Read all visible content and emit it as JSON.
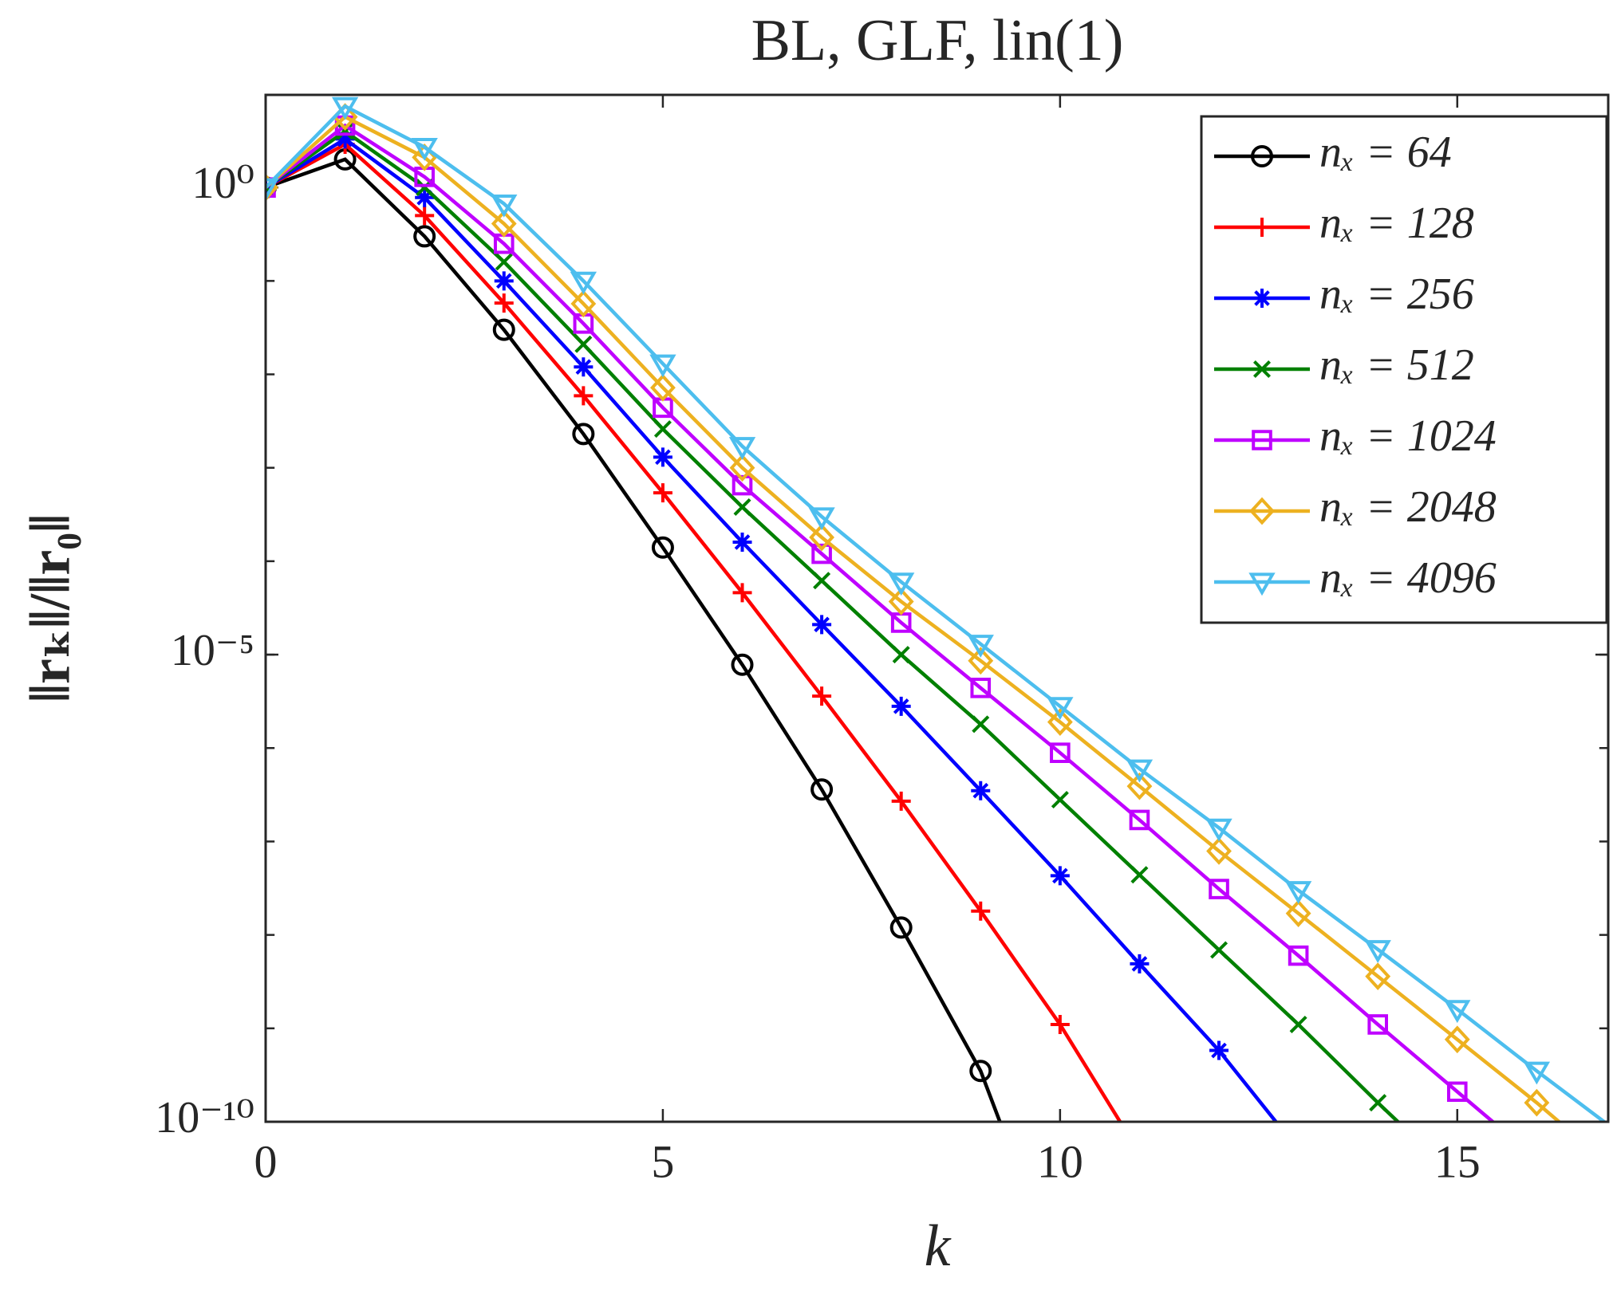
{
  "chart_data": {
    "type": "line",
    "title": "BL, GLF, lin(1)",
    "x_label": "k",
    "y_label": "‖rₖ‖/‖r₀‖",
    "x": [
      0,
      1,
      2,
      3,
      4,
      5,
      6,
      7,
      8,
      9,
      10,
      11,
      12,
      13,
      14,
      15,
      16,
      17
    ],
    "xlim": [
      0,
      16.9
    ],
    "xticks": [
      0,
      5,
      10,
      15
    ],
    "ylim": [
      1e-10,
      9.8
    ],
    "y_scale": "log",
    "yticks": [
      {
        "value": 1e-10,
        "label": "10⁻¹⁰"
      },
      {
        "value": 1e-05,
        "label": "10⁻⁵"
      },
      {
        "value": 1,
        "label": "10⁰"
      }
    ],
    "legend_position": "upper right",
    "series": [
      {
        "name": "nₓ = 64",
        "color": "#000000",
        "marker": "circle",
        "values": [
          1,
          2,
          0.3,
          0.03,
          0.0023,
          0.00014,
          7.8e-06,
          3.6e-07,
          1.2e-08,
          3.5e-10,
          2e-12,
          null,
          null,
          null,
          null,
          null,
          null,
          null
        ]
      },
      {
        "name": "nₓ = 128",
        "color": "#ff0000",
        "marker": "plus",
        "values": [
          1,
          2.9,
          0.5,
          0.058,
          0.0059,
          0.00054,
          4.6e-05,
          3.6e-06,
          2.7e-07,
          1.8e-08,
          1.1e-09,
          4.6e-11,
          null,
          null,
          null,
          null,
          null,
          null
        ]
      },
      {
        "name": "nₓ = 256",
        "color": "#0000ff",
        "marker": "asterisk",
        "values": [
          1,
          3.3,
          0.78,
          0.1,
          0.012,
          0.0013,
          0.00016,
          2.1e-05,
          2.8e-06,
          3.5e-07,
          4.3e-08,
          4.9e-09,
          5.8e-10,
          5e-11,
          null,
          null,
          null,
          null
        ]
      },
      {
        "name": "nₓ = 512",
        "color": "#008000",
        "marker": "cross",
        "values": [
          1,
          4,
          1,
          0.16,
          0.021,
          0.0026,
          0.00038,
          6.2e-05,
          1e-05,
          1.8e-06,
          2.8e-07,
          4.4e-08,
          6.9e-09,
          1.1e-09,
          1.6e-10,
          2.5e-11,
          null,
          null
        ]
      },
      {
        "name": "nₓ = 1024",
        "color": "#bf00ff",
        "marker": "square",
        "values": [
          1,
          4.6,
          1.3,
          0.25,
          0.035,
          0.0044,
          0.00065,
          0.00012,
          2.2e-05,
          4.4e-06,
          8.9e-07,
          1.7e-07,
          3.1e-08,
          6e-09,
          1.1e-09,
          2.1e-10,
          4e-11,
          null
        ]
      },
      {
        "name": "nₓ = 2048",
        "color": "#edb120",
        "marker": "diamond",
        "values": [
          1,
          5.7,
          2.1,
          0.41,
          0.057,
          0.0072,
          0.001,
          0.00018,
          3.7e-05,
          8.6e-06,
          1.9e-06,
          3.9e-07,
          7.9e-08,
          1.7e-08,
          3.6e-09,
          7.6e-10,
          1.6e-10,
          3e-11
        ]
      },
      {
        "name": "nₓ = 4096",
        "color": "#4dbeee",
        "marker": "triangle-down",
        "values": [
          1,
          7.4,
          2.7,
          0.67,
          0.1,
          0.013,
          0.0017,
          0.0003,
          6e-05,
          1.3e-05,
          2.8e-06,
          6e-07,
          1.4e-07,
          3e-08,
          7e-09,
          1.6e-09,
          3.5e-10,
          8e-11
        ]
      }
    ]
  }
}
